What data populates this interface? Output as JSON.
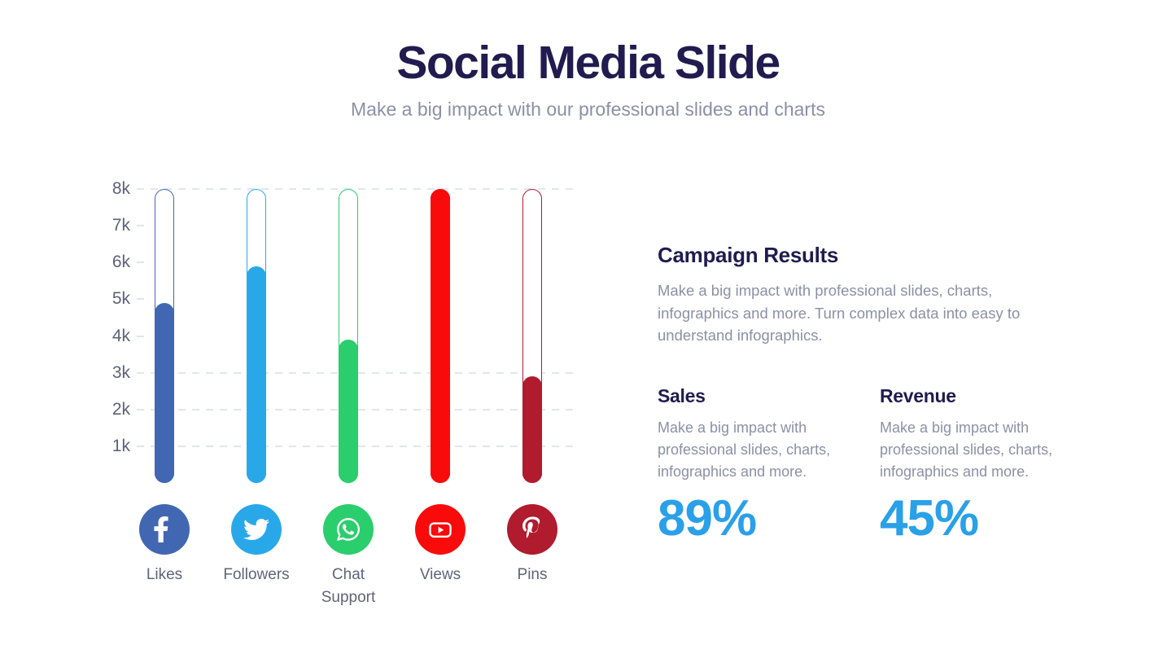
{
  "slide": {
    "title": "Social Media Slide",
    "subtitle": "Make a big impact with our professional slides and charts"
  },
  "chart_data": {
    "type": "bar",
    "categories": [
      "Likes",
      "Followers",
      "Chat Support",
      "Views",
      "Pins"
    ],
    "values": [
      4900,
      5900,
      3900,
      8000,
      2900
    ],
    "ylim": [
      0,
      8000
    ],
    "yticks": [
      "8k",
      "7k",
      "6k",
      "5k",
      "4k",
      "3k",
      "2k",
      "1k"
    ],
    "ytick_values": [
      8000,
      7000,
      6000,
      5000,
      4000,
      3000,
      2000,
      1000
    ],
    "full_gridlines": [
      8000,
      3000,
      2000,
      1000
    ],
    "grid_style": "dashed",
    "legend": "none",
    "bars": [
      {
        "label": "Likes",
        "value": 4900,
        "color": "#4267B2",
        "icon": "facebook-icon"
      },
      {
        "label": "Followers",
        "value": 5900,
        "color": "#29A8E9",
        "icon": "twitter-icon"
      },
      {
        "label": "Chat Support",
        "value": 3900,
        "color": "#2BCE6C",
        "icon": "whatsapp-icon"
      },
      {
        "label": "Views",
        "value": 8000,
        "color": "#FA0B0B",
        "icon": "youtube-icon"
      },
      {
        "label": "Pins",
        "value": 2900,
        "color": "#B01B2E",
        "icon": "pinterest-icon"
      }
    ]
  },
  "panel": {
    "heading": "Campaign Results",
    "body": "Make a big impact with professional slides, charts, infographics and more. Turn complex data into easy to understand infographics.",
    "stats": [
      {
        "heading": "Sales",
        "body": "Make a big impact with professional slides, charts, infographics and more.",
        "value": "89%"
      },
      {
        "heading": "Revenue",
        "body": "Make a big impact with professional slides, charts, infographics and more.",
        "value": "45%"
      }
    ]
  },
  "colors": {
    "title_text": "#211B4F",
    "body_text": "#8B90A6",
    "axis_text": "#5D617A",
    "gridline": "#E1E5F0",
    "accent_percent": "#2AA0E8",
    "background": "#FFFFFF"
  }
}
